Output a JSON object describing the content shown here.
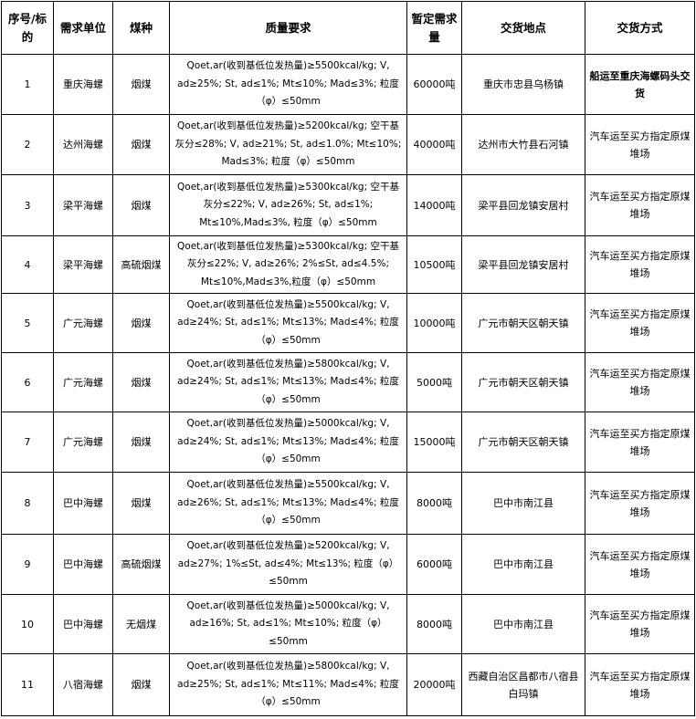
{
  "headers": [
    "序号/标的",
    "需求单位",
    "煤种",
    "质量要求",
    "暂定需求量",
    "交货地点",
    "交货方式"
  ],
  "rows": [
    {
      "no": "1",
      "unit": "重庆海螺",
      "coal": "烟煤",
      "quality": "Qoet,ar(收到基低位发热量)≥5500kcal/kg; V, ad≥25%; St, ad≤1%; Mt≤10%; Mad≤3%; 粒度（φ）≤50mm",
      "qty": "60000吨",
      "place": "重庆市忠县乌杨镇",
      "method": "船运至重庆海螺码头交货"
    },
    {
      "no": "2",
      "unit": "达州海螺",
      "coal": "烟煤",
      "quality": "Qoet,ar(收到基低位发热量)≥5200kcal/kg; 空干基灰分≤28%; V, ad≥21%; St, ad≤1.0%; Mt≤10%; Mad≤3%; 粒度（φ）≤50mm",
      "qty": "40000吨",
      "place": "达州市大竹县石河镇",
      "method": "汽车运至买方指定原煤堆场"
    },
    {
      "no": "3",
      "unit": "梁平海螺",
      "coal": "烟煤",
      "quality": "Qoet,ar(收到基低位发热量)≥5300kcal/kg; 空干基灰分≤22%; V, ad≥26%; St, ad≤1%; Mt≤10%,Mad≤3%, 粒度（φ）≤50mm",
      "qty": "14000吨",
      "place": "梁平县回龙镇安居村",
      "method": "汽车运至买方指定原煤堆场"
    },
    {
      "no": "4",
      "unit": "梁平海螺",
      "coal": "高硫烟煤",
      "quality": "Qoet,ar(收到基低位发热量)≥5300kcal/kg; 空干基灰分≤22%; V, ad≥26%; 2%≤St, ad≤4.5%; Mt≤10%,Mad≤3%,粒度（φ）≤50mm",
      "qty": "10500吨",
      "place": "梁平县回龙镇安居村",
      "method": "汽车运至买方指定原煤堆场"
    },
    {
      "no": "5",
      "unit": "广元海螺",
      "coal": "烟煤",
      "quality": "Qoet,ar(收到基低位发热量)≥5500kcal/kg; V, ad≥24%; St, ad≤1%; Mt≤13%; Mad≤4%; 粒度（φ）≤50mm",
      "qty": "10000吨",
      "place": "广元市朝天区朝天镇",
      "method": "汽车运至买方指定原煤堆场"
    },
    {
      "no": "6",
      "unit": "广元海螺",
      "coal": "烟煤",
      "quality": "Qoet,ar(收到基低位发热量)≥5800kcal/kg; V, ad≥24%; St, ad≤1%; Mt≤13%; Mad≤4%; 粒度（φ）≤50mm",
      "qty": "5000吨",
      "place": "广元市朝天区朝天镇",
      "method": "汽车运至买方指定原煤堆场"
    },
    {
      "no": "7",
      "unit": "广元海螺",
      "coal": "烟煤",
      "quality": "Qoet,ar(收到基低位发热量)≥5000kcal/kg; V, ad≥24%; St, ad≤1%; Mt≤13%; Mad≤4%; 粒度（φ）≤50mm",
      "qty": "15000吨",
      "place": "广元市朝天区朝天镇",
      "method": "汽车运至买方指定原煤堆场"
    },
    {
      "no": "8",
      "unit": "巴中海螺",
      "coal": "烟煤",
      "quality": "Qoet,ar(收到基低位发热量)≥5500kcal/kg; V, ad≥26%; St, ad≤1%; Mt≤13%; Mad≤4%; 粒度（φ）≤50mm",
      "qty": "8000吨",
      "place": "巴中市南江县",
      "method": "汽车运至买方指定原煤堆场"
    },
    {
      "no": "9",
      "unit": "巴中海螺",
      "coal": "高硫烟煤",
      "quality": "Qoet,ar(收到基低位发热量)≥5200kcal/kg; V, ad≥27%; 1%≤St, ad≤4%; Mt≤13%; 粒度（φ）≤50mm",
      "qty": "6000吨",
      "place": "巴中市南江县",
      "method": "汽车运至买方指定原煤堆场"
    },
    {
      "no": "10",
      "unit": "巴中海螺",
      "coal": "无烟煤",
      "quality": "Qoet,ar(收到基低位发热量)≥5000kcal/kg; V, ad≥16%; St, ad≤1%; Mt≤10%; 粒度（φ）≤50mm",
      "qty": "8000吨",
      "place": "巴中市南江县",
      "method": "汽车运至买方指定原煤堆场"
    },
    {
      "no": "11",
      "unit": "八宿海螺",
      "coal": "烟煤",
      "quality": "Qoet,ar(收到基低位发热量)≥5800kcal/kg; V, ad≥25%; St, ad≤1%; Mt≤11%; Mad≤4%; 粒度（φ）≤50mm",
      "qty": "20000吨",
      "place": "西藏自治区昌都市八宿县白玛镇",
      "method": "汽车运至买方指定原煤堆场"
    }
  ]
}
